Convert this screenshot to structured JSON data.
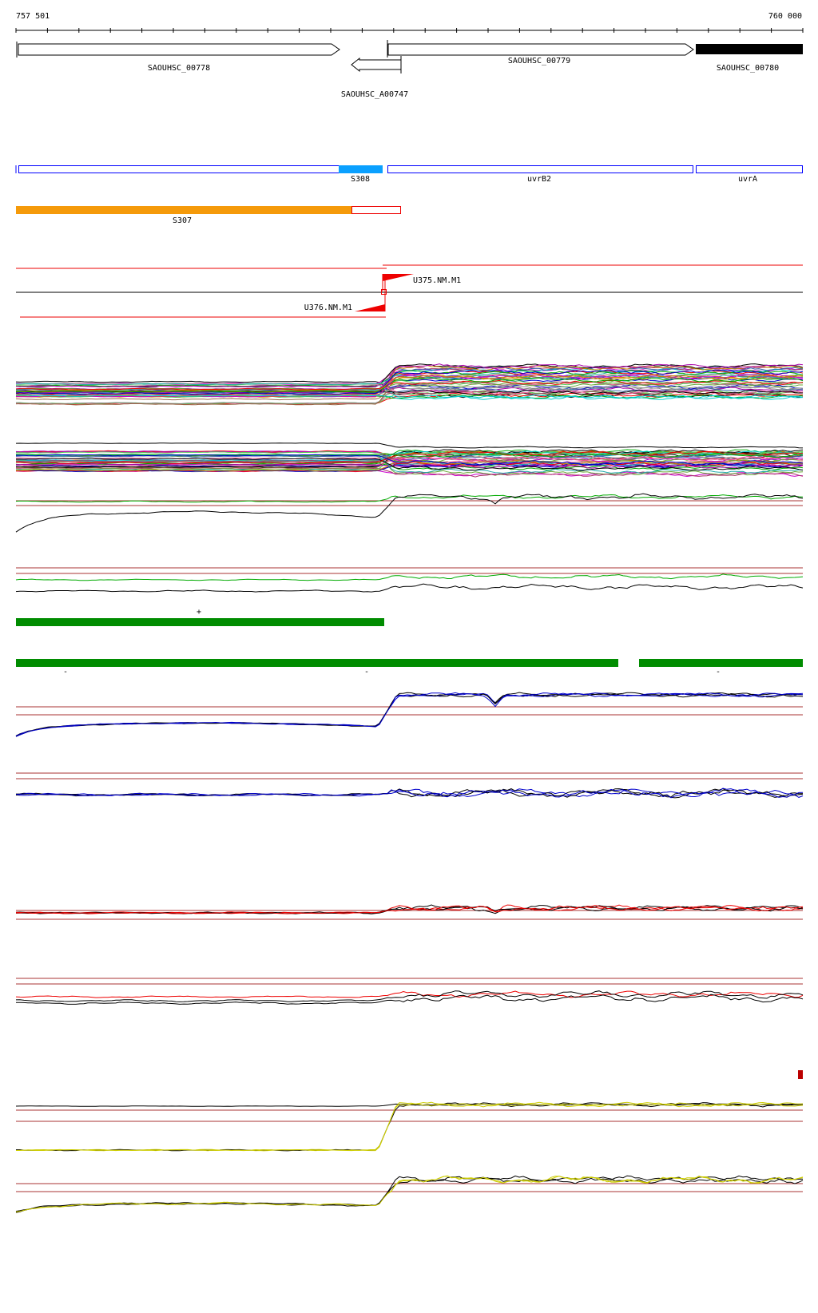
{
  "ruler": {
    "start": "757 501",
    "end": "760 000"
  },
  "genes": {
    "g1": "SAOUHSC_00778",
    "g2": "SAOUHSC_00779",
    "g3": "SAOUHSC_00780",
    "g4": "SAOUHSC_A00747"
  },
  "features": {
    "f1": "S308",
    "f2": "uvrB2",
    "f3": "uvrA",
    "f4": "S307"
  },
  "primers": {
    "p1": "U375.NM.M1",
    "p2": "U376.NM.M1"
  },
  "strands": {
    "plus": "+",
    "minus1": "-",
    "minus2": "-",
    "minus3": "-"
  }
}
